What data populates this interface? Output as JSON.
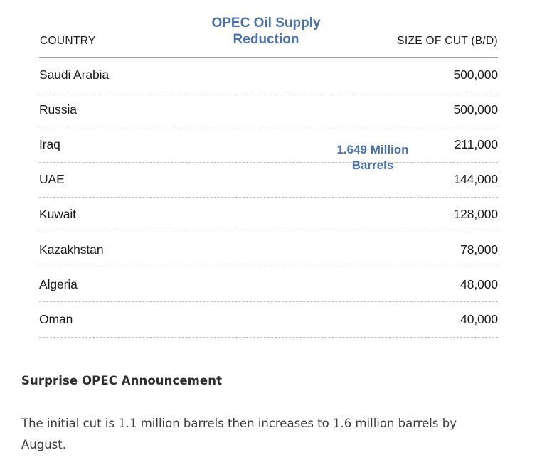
{
  "accent_color": "#4a72b2",
  "table": {
    "title": "OPEC Oil Supply Reduction",
    "col_country": "COUNTRY",
    "col_size": "SIZE OF CUT (B/D)",
    "annotation": "1.649 Million Barrels",
    "rows": [
      {
        "country": "Saudi Arabia",
        "cut": "500,000"
      },
      {
        "country": "Russia",
        "cut": "500,000"
      },
      {
        "country": "Iraq",
        "cut": "211,000"
      },
      {
        "country": "UAE",
        "cut": "144,000"
      },
      {
        "country": "Kuwait",
        "cut": "128,000"
      },
      {
        "country": "Kazakhstan",
        "cut": "78,000"
      },
      {
        "country": "Algeria",
        "cut": "48,000"
      },
      {
        "country": "Oman",
        "cut": "40,000"
      }
    ]
  },
  "article": {
    "heading": "Surprise OPEC Announcement",
    "paragraph": "The initial cut is 1.1 million barrels then increases to 1.6 million barrels by August."
  },
  "chart_data": {
    "type": "table",
    "title": "OPEC Oil Supply Reduction",
    "columns": [
      "COUNTRY",
      "SIZE OF CUT (B/D)"
    ],
    "rows": [
      [
        "Saudi Arabia",
        500000
      ],
      [
        "Russia",
        500000
      ],
      [
        "Iraq",
        211000
      ],
      [
        "UAE",
        144000
      ],
      [
        "Kuwait",
        128000
      ],
      [
        "Kazakhstan",
        78000
      ],
      [
        "Algeria",
        48000
      ],
      [
        "Oman",
        40000
      ]
    ],
    "annotation": "1.649 Million Barrels",
    "total_cut_barrels": 1649000,
    "layout_hints": {
      "title_color": "#4a72b2",
      "annotation_color": "#4a72b2",
      "row_divider": "dashed",
      "header_divider": "solid",
      "values_aligned": "right"
    }
  }
}
